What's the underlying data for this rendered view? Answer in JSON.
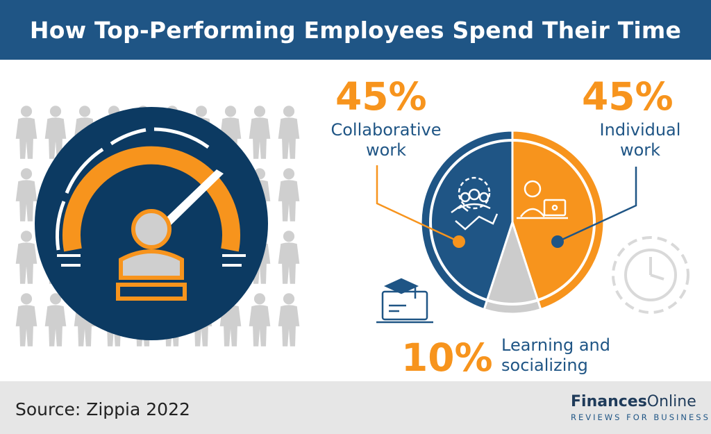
{
  "header": {
    "title": "How Top-Performing Employees Spend Their Time"
  },
  "footer": {
    "source": "Source: Zippia 2022",
    "brand": {
      "name_bold": "Finances",
      "name_regular": "Online",
      "tagline": "REVIEWS FOR BUSINESS"
    }
  },
  "labels": {
    "collab_pct": "45%",
    "collab_line1": "Collaborative",
    "collab_line2": "work",
    "indiv_pct": "45%",
    "indiv_line1": "Individual",
    "indiv_line2": "work",
    "learn_pct": "10%",
    "learn_line1": "Learning and",
    "learn_line2": "socializing"
  },
  "colors": {
    "blue": "#1f5585",
    "orange": "#f7941d",
    "gray": "#cccccc",
    "navy": "#0c3a62"
  },
  "icons": [
    "person-icon",
    "speedometer-icon",
    "teamwork-gear-icon",
    "handshake-icon",
    "person-laptop-icon",
    "graduation-laptop-icon",
    "clock-gear-icon",
    "cloud-logo-icon"
  ],
  "chart_data": {
    "type": "pie",
    "title": "How Top-Performing Employees Spend Their Time",
    "series": [
      {
        "name": "Collaborative work",
        "value": 45,
        "color": "#1f5585"
      },
      {
        "name": "Individual work",
        "value": 45,
        "color": "#f7941d"
      },
      {
        "name": "Learning and socializing",
        "value": 10,
        "color": "#cccccc"
      }
    ]
  }
}
